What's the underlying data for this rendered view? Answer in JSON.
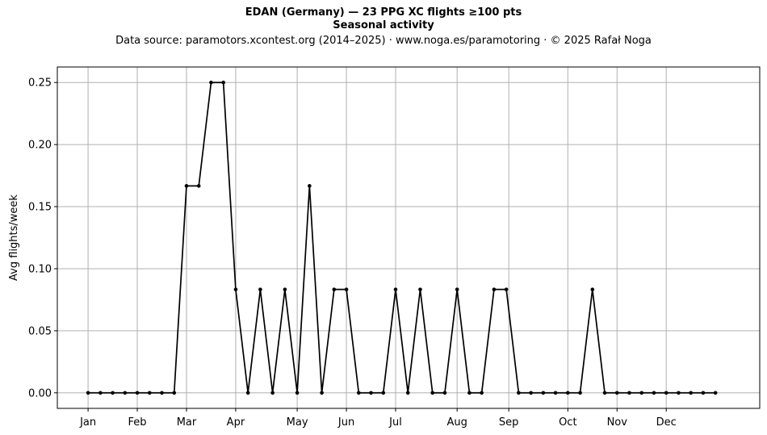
{
  "chart_data": {
    "type": "line",
    "title": "EDAN (Germany)  —  23 PPG XC flights ≥100 pts",
    "subtitle": "Seasonal activity",
    "source_note": "Data source: paramotors.xcontest.org (2014–2025)  ·  www.noga.es/paramotoring  ·  © 2025 Rafał Noga",
    "xlabel": "",
    "ylabel": "Avg flights/week",
    "x_unit": "week",
    "xlim": [
      -2.5,
      54.6
    ],
    "ylim": [
      -0.0125,
      0.2625
    ],
    "grid": true,
    "x_ticks": [
      {
        "x": 0,
        "label": "Jan"
      },
      {
        "x": 4,
        "label": "Feb"
      },
      {
        "x": 8,
        "label": "Mar"
      },
      {
        "x": 12,
        "label": "Apr"
      },
      {
        "x": 17,
        "label": "May"
      },
      {
        "x": 21,
        "label": "Jun"
      },
      {
        "x": 25,
        "label": "Jul"
      },
      {
        "x": 30,
        "label": "Aug"
      },
      {
        "x": 34.2,
        "label": "Sep"
      },
      {
        "x": 39,
        "label": "Oct"
      },
      {
        "x": 43,
        "label": "Nov"
      },
      {
        "x": 47,
        "label": "Dec"
      }
    ],
    "y_ticks": [
      0.0,
      0.05,
      0.1,
      0.15,
      0.2,
      0.25
    ],
    "y_tick_labels": [
      "0.00",
      "0.05",
      "0.10",
      "0.15",
      "0.20",
      "0.25"
    ],
    "series": [
      {
        "color": "#000000",
        "x": [
          0,
          1,
          2,
          3,
          4,
          5,
          6,
          7,
          8,
          9,
          10,
          11,
          12,
          13,
          14,
          15,
          16,
          17,
          18,
          19,
          20,
          21,
          22,
          23,
          24,
          25,
          26,
          27,
          28,
          29,
          30,
          31,
          32,
          33,
          34,
          35,
          36,
          37,
          38,
          39,
          40,
          41,
          42,
          43,
          44,
          45,
          46,
          47,
          48,
          49,
          50,
          51
        ],
        "y": [
          0,
          0,
          0,
          0,
          0,
          0,
          0,
          0,
          0.1667,
          0.1667,
          0.25,
          0.25,
          0.0833,
          0,
          0.0833,
          0,
          0.0833,
          0,
          0.1667,
          0,
          0.0833,
          0.0833,
          0,
          0,
          0,
          0.0833,
          0,
          0.0833,
          0,
          0,
          0.0833,
          0,
          0,
          0.0833,
          0.0833,
          0,
          0,
          0,
          0,
          0,
          0,
          0.0833,
          0,
          0,
          0,
          0,
          0,
          0,
          0,
          0,
          0,
          0
        ]
      }
    ]
  }
}
